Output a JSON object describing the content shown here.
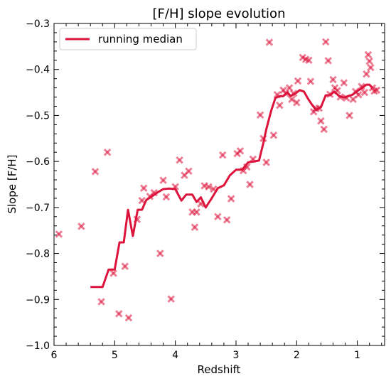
{
  "chart_data": {
    "type": "scatter",
    "title": "[F/H] slope evolution",
    "xlabel": "Redshift",
    "ylabel": "Slope [F/H]",
    "xlim": [
      6,
      0.55
    ],
    "ylim": [
      -1.0,
      -0.3
    ],
    "x_inverted": true,
    "x_ticks": [
      6,
      5,
      4,
      3,
      2,
      1
    ],
    "x_tick_labels": [
      "6",
      "5",
      "4",
      "3",
      "2",
      "1"
    ],
    "y_ticks": [
      -1.0,
      -0.9,
      -0.8,
      -0.7,
      -0.6,
      -0.5,
      -0.4,
      -0.3
    ],
    "y_tick_labels": [
      "−1.0",
      "−0.9",
      "−0.8",
      "−0.7",
      "−0.6",
      "−0.5",
      "−0.4",
      "−0.3"
    ],
    "grid": false,
    "legend_placement": "top-left",
    "colors": {
      "series": "#dc143c"
    },
    "scatter": [
      [
        5.92,
        -0.758
      ],
      [
        5.55,
        -0.741
      ],
      [
        5.32,
        -0.622
      ],
      [
        5.22,
        -0.905
      ],
      [
        5.12,
        -0.58
      ],
      [
        5.02,
        -0.843
      ],
      [
        4.93,
        -0.931
      ],
      [
        4.83,
        -0.828
      ],
      [
        4.77,
        -0.94
      ],
      [
        4.63,
        -0.726
      ],
      [
        4.55,
        -0.685
      ],
      [
        4.52,
        -0.658
      ],
      [
        4.42,
        -0.676
      ],
      [
        4.35,
        -0.668
      ],
      [
        4.25,
        -0.8
      ],
      [
        4.2,
        -0.641
      ],
      [
        4.15,
        -0.677
      ],
      [
        4.07,
        -0.899
      ],
      [
        4.0,
        -0.655
      ],
      [
        3.93,
        -0.597
      ],
      [
        3.85,
        -0.63
      ],
      [
        3.78,
        -0.621
      ],
      [
        3.72,
        -0.71
      ],
      [
        3.68,
        -0.743
      ],
      [
        3.65,
        -0.71
      ],
      [
        3.58,
        -0.692
      ],
      [
        3.52,
        -0.653
      ],
      [
        3.45,
        -0.655
      ],
      [
        3.37,
        -0.66
      ],
      [
        3.3,
        -0.72
      ],
      [
        3.22,
        -0.586
      ],
      [
        3.15,
        -0.727
      ],
      [
        3.08,
        -0.681
      ],
      [
        2.98,
        -0.583
      ],
      [
        2.93,
        -0.577
      ],
      [
        2.88,
        -0.62
      ],
      [
        2.82,
        -0.612
      ],
      [
        2.77,
        -0.65
      ],
      [
        2.72,
        -0.595
      ],
      [
        2.6,
        -0.499
      ],
      [
        2.55,
        -0.55
      ],
      [
        2.5,
        -0.602
      ],
      [
        2.45,
        -0.341
      ],
      [
        2.38,
        -0.543
      ],
      [
        2.32,
        -0.455
      ],
      [
        2.28,
        -0.478
      ],
      [
        2.22,
        -0.445
      ],
      [
        2.18,
        -0.452
      ],
      [
        2.12,
        -0.44
      ],
      [
        2.08,
        -0.465
      ],
      [
        2.05,
        -0.452
      ],
      [
        2.0,
        -0.472
      ],
      [
        1.98,
        -0.425
      ],
      [
        1.9,
        -0.374
      ],
      [
        1.85,
        -0.378
      ],
      [
        1.8,
        -0.38
      ],
      [
        1.77,
        -0.426
      ],
      [
        1.72,
        -0.492
      ],
      [
        1.68,
        -0.485
      ],
      [
        1.63,
        -0.484
      ],
      [
        1.6,
        -0.512
      ],
      [
        1.55,
        -0.53
      ],
      [
        1.52,
        -0.34
      ],
      [
        1.48,
        -0.381
      ],
      [
        1.45,
        -0.454
      ],
      [
        1.4,
        -0.422
      ],
      [
        1.37,
        -0.44
      ],
      [
        1.33,
        -0.446
      ],
      [
        1.28,
        -0.46
      ],
      [
        1.22,
        -0.429
      ],
      [
        1.18,
        -0.462
      ],
      [
        1.13,
        -0.5
      ],
      [
        1.07,
        -0.465
      ],
      [
        1.03,
        -0.448
      ],
      [
        0.98,
        -0.455
      ],
      [
        0.93,
        -0.437
      ],
      [
        0.88,
        -0.45
      ],
      [
        0.85,
        -0.41
      ],
      [
        0.82,
        -0.368
      ],
      [
        0.8,
        -0.382
      ],
      [
        0.78,
        -0.396
      ],
      [
        0.75,
        -0.44
      ],
      [
        0.72,
        -0.447
      ],
      [
        0.68,
        -0.445
      ]
    ],
    "series": [
      {
        "name": "running median",
        "x": [
          5.4,
          5.2,
          5.1,
          5.0,
          4.92,
          4.85,
          4.78,
          4.7,
          4.62,
          4.55,
          4.48,
          4.4,
          4.3,
          4.2,
          4.1,
          4.0,
          3.9,
          3.82,
          3.72,
          3.65,
          3.58,
          3.5,
          3.4,
          3.3,
          3.2,
          3.1,
          3.0,
          2.9,
          2.8,
          2.7,
          2.62,
          2.55,
          2.5,
          2.42,
          2.35,
          2.28,
          2.22,
          2.15,
          2.1,
          2.02,
          1.95,
          1.88,
          1.82,
          1.75,
          1.68,
          1.6,
          1.52,
          1.45,
          1.38,
          1.3,
          1.22,
          1.15,
          1.08,
          1.0,
          0.92,
          0.85,
          0.8,
          0.75
        ],
        "y": [
          -0.873,
          -0.873,
          -0.835,
          -0.835,
          -0.776,
          -0.776,
          -0.705,
          -0.762,
          -0.705,
          -0.705,
          -0.684,
          -0.677,
          -0.668,
          -0.66,
          -0.659,
          -0.66,
          -0.685,
          -0.672,
          -0.672,
          -0.688,
          -0.678,
          -0.7,
          -0.68,
          -0.658,
          -0.652,
          -0.63,
          -0.618,
          -0.618,
          -0.602,
          -0.6,
          -0.598,
          -0.56,
          -0.53,
          -0.49,
          -0.462,
          -0.458,
          -0.458,
          -0.45,
          -0.458,
          -0.452,
          -0.445,
          -0.448,
          -0.462,
          -0.476,
          -0.488,
          -0.482,
          -0.456,
          -0.456,
          -0.448,
          -0.458,
          -0.461,
          -0.458,
          -0.455,
          -0.447,
          -0.44,
          -0.433,
          -0.433,
          -0.44
        ]
      }
    ]
  }
}
